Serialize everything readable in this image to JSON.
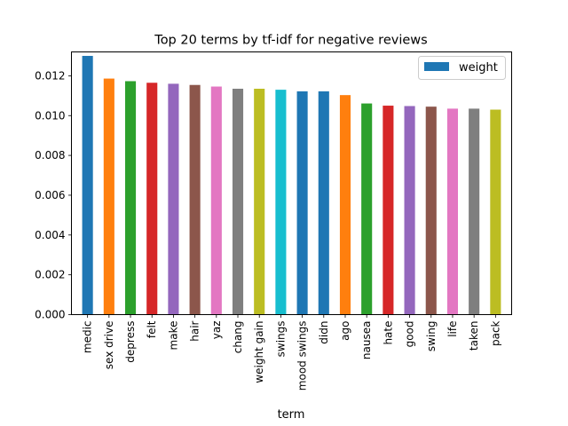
{
  "chart_data": {
    "type": "bar",
    "title": "Top 20 terms by tf-idf for negative reviews",
    "xlabel": "term",
    "ylabel": "",
    "ylim": [
      0,
      0.0132
    ],
    "yticks": [
      "0.000",
      "0.002",
      "0.004",
      "0.006",
      "0.008",
      "0.010",
      "0.012"
    ],
    "grid": false,
    "legend_position": "top-right",
    "categories": [
      "medic",
      "sex drive",
      "depress",
      "felt",
      "make",
      "hair",
      "yaz",
      "chang",
      "weight gain",
      "swings",
      "mood swings",
      "didn",
      "ago",
      "nausea",
      "hate",
      "good",
      "swing",
      "life",
      "taken",
      "pack"
    ],
    "series": [
      {
        "name": "weight",
        "values": [
          0.013,
          0.01186,
          0.01173,
          0.01165,
          0.0116,
          0.01154,
          0.01146,
          0.01135,
          0.01135,
          0.0113,
          0.01122,
          0.01122,
          0.01103,
          0.01061,
          0.0105,
          0.01048,
          0.01045,
          0.01035,
          0.01035,
          0.0103
        ],
        "colors": [
          "#1f77b4",
          "#ff7f0e",
          "#2ca02c",
          "#d62728",
          "#9467bd",
          "#8c564b",
          "#e377c2",
          "#7f7f7f",
          "#bcbd22",
          "#17becf",
          "#1f77b4",
          "#1f77b4",
          "#ff7f0e",
          "#2ca02c",
          "#d62728",
          "#9467bd",
          "#8c564b",
          "#e377c2",
          "#7f7f7f",
          "#bcbd22"
        ]
      }
    ],
    "legend_color": "#1f77b4"
  }
}
